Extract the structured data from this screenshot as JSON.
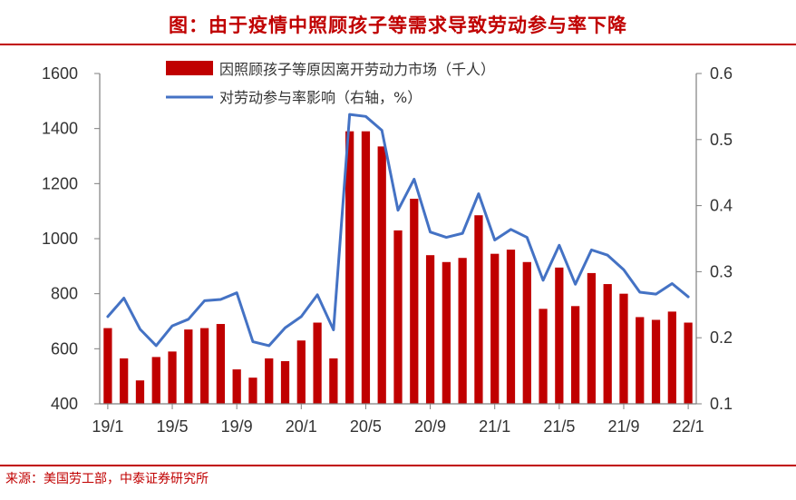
{
  "title": "图：由于疫情中照顾孩子等需求导致劳动参与率下降",
  "source": "来源：美国劳工部，中泰证券研究所",
  "chart_data": {
    "type": "bar+line",
    "categories": [
      "19/1",
      "19/2",
      "19/3",
      "19/4",
      "19/5",
      "19/6",
      "19/7",
      "19/8",
      "19/9",
      "19/10",
      "19/11",
      "19/12",
      "20/1",
      "20/2",
      "20/3",
      "20/4",
      "20/5",
      "20/6",
      "20/7",
      "20/8",
      "20/9",
      "20/10",
      "20/11",
      "20/12",
      "21/1",
      "21/2",
      "21/3",
      "21/4",
      "21/5",
      "21/6",
      "21/7",
      "21/8",
      "21/9",
      "21/10",
      "21/11",
      "21/12",
      "22/1"
    ],
    "x_tick_labels": [
      "19/1",
      "19/5",
      "19/9",
      "20/1",
      "20/5",
      "20/9",
      "21/1",
      "21/5",
      "21/9",
      "22/1"
    ],
    "series": [
      {
        "name": "因照顾孩子等原因离开劳动力市场（千人）",
        "type": "bar",
        "axis": "left",
        "color": "#C00000",
        "values": [
          675,
          565,
          485,
          570,
          590,
          670,
          675,
          690,
          525,
          495,
          565,
          555,
          630,
          695,
          565,
          1390,
          1390,
          1335,
          1030,
          1145,
          940,
          915,
          930,
          1085,
          945,
          960,
          915,
          745,
          895,
          755,
          875,
          835,
          800,
          715,
          705,
          735,
          695
        ]
      },
      {
        "name": "对劳动参与率影响（右轴，%）",
        "type": "line",
        "axis": "right",
        "color": "#4472C4",
        "values": [
          0.232,
          0.26,
          0.213,
          0.188,
          0.218,
          0.228,
          0.256,
          0.258,
          0.268,
          0.194,
          0.188,
          0.215,
          0.232,
          0.265,
          0.212,
          0.538,
          0.535,
          0.514,
          0.393,
          0.44,
          0.36,
          0.352,
          0.358,
          0.418,
          0.348,
          0.364,
          0.352,
          0.287,
          0.34,
          0.281,
          0.333,
          0.325,
          0.303,
          0.269,
          0.266,
          0.282,
          0.262
        ]
      }
    ],
    "y_left": {
      "min": 400,
      "max": 1600,
      "step": 200
    },
    "y_right": {
      "min": 0.1,
      "max": 0.6,
      "step": 0.1
    },
    "legend_position": "top-center",
    "grid": false
  }
}
